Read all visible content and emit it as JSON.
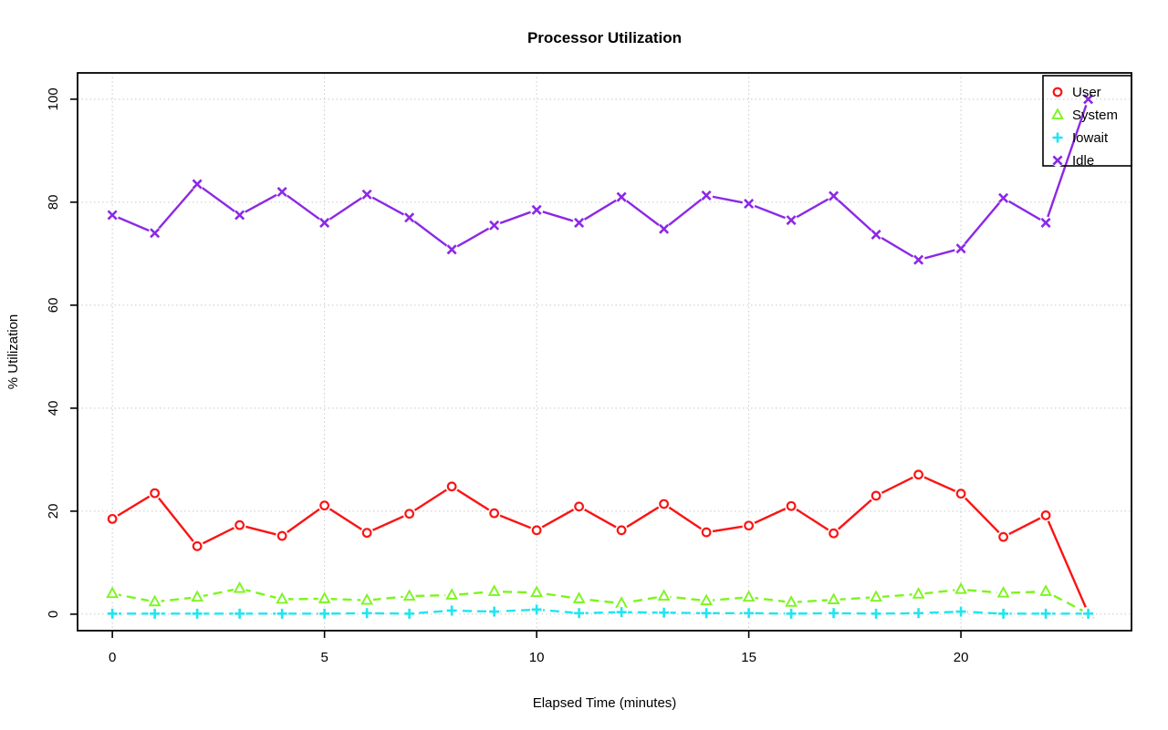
{
  "title": "Processor Utilization",
  "chart_data": {
    "type": "line",
    "title": "Processor Utilization",
    "xlabel": "Elapsed Time (minutes)",
    "ylabel": "% Utilization",
    "x": [
      0,
      1,
      2,
      3,
      4,
      5,
      6,
      7,
      8,
      9,
      10,
      11,
      12,
      13,
      14,
      15,
      16,
      17,
      18,
      19,
      20,
      21,
      22,
      23
    ],
    "xtick_labels": [
      "0",
      "5",
      "10",
      "15",
      "20"
    ],
    "xtick_values": [
      0,
      5,
      10,
      15,
      20
    ],
    "ytick_labels": [
      "0",
      "20",
      "40",
      "60",
      "80",
      "100"
    ],
    "ytick_values": [
      0,
      20,
      40,
      60,
      80,
      100
    ],
    "xlim": [
      -0.82,
      24.02
    ],
    "ylim": [
      -3.2,
      105.1
    ],
    "grid": true,
    "grid_color": "#c9c9c9",
    "axis_color": "#000000",
    "legend_position": "top-right",
    "series": [
      {
        "name": "User",
        "color": "#fa1414",
        "marker": "circle",
        "line": "solid",
        "values": [
          18.5,
          23.5,
          13.2,
          17.3,
          15.2,
          21.1,
          15.8,
          19.5,
          24.8,
          19.6,
          16.3,
          20.9,
          16.3,
          21.4,
          15.9,
          17.2,
          21.0,
          15.7,
          23.0,
          27.1,
          23.4,
          15.0,
          19.2,
          0.2
        ]
      },
      {
        "name": "System",
        "color": "#7cf51e",
        "marker": "triangle",
        "line": "dashed",
        "values": [
          4.0,
          2.4,
          3.3,
          5.0,
          2.9,
          3.0,
          2.7,
          3.5,
          3.7,
          4.4,
          4.2,
          3.0,
          2.1,
          3.5,
          2.6,
          3.3,
          2.3,
          2.8,
          3.3,
          3.9,
          4.8,
          4.1,
          4.4,
          0.1
        ]
      },
      {
        "name": "Iowait",
        "color": "#1ee6f0",
        "marker": "plus",
        "line": "dashed",
        "values": [
          0.1,
          0.1,
          0.1,
          0.1,
          0.1,
          0.1,
          0.2,
          0.1,
          0.7,
          0.5,
          0.9,
          0.2,
          0.4,
          0.3,
          0.2,
          0.2,
          0.1,
          0.2,
          0.1,
          0.2,
          0.5,
          0.1,
          0.1,
          0.1
        ]
      },
      {
        "name": "Idle",
        "color": "#8c28e6",
        "marker": "x",
        "line": "solid",
        "values": [
          77.5,
          74.0,
          83.5,
          77.5,
          82.0,
          76.0,
          81.5,
          77.0,
          70.8,
          75.5,
          78.5,
          76.0,
          81.0,
          74.8,
          81.3,
          79.7,
          76.5,
          81.2,
          73.7,
          68.8,
          71.0,
          80.8,
          76.0,
          100.0
        ]
      }
    ]
  }
}
